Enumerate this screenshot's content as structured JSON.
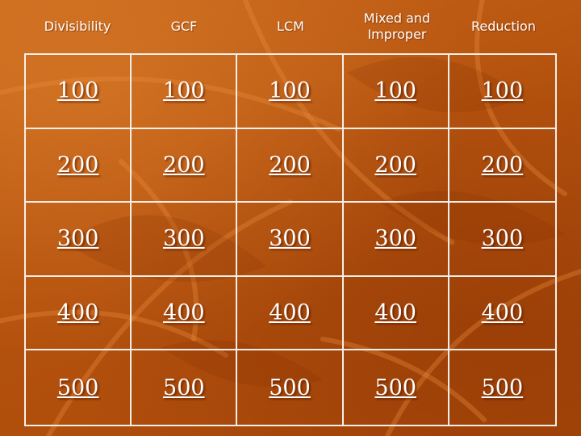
{
  "columns": [
    {
      "header": "Divisibility",
      "values": [
        "100",
        "200",
        "300",
        "400",
        "500"
      ]
    },
    {
      "header": "GCF",
      "values": [
        "100",
        "200",
        "300",
        "400",
        "500"
      ]
    },
    {
      "header": "LCM",
      "values": [
        "100",
        "200",
        "300",
        "400",
        "500"
      ]
    },
    {
      "header": "Mixed and\nImproper",
      "values": [
        "100",
        "200",
        "300",
        "400",
        "500"
      ]
    },
    {
      "header": "Reduction",
      "values": [
        "100",
        "200",
        "300",
        "400",
        "500"
      ]
    }
  ],
  "colors": {
    "background": "#b8560f",
    "grid_lines": "#f4efe9",
    "text": "#ffffff"
  }
}
